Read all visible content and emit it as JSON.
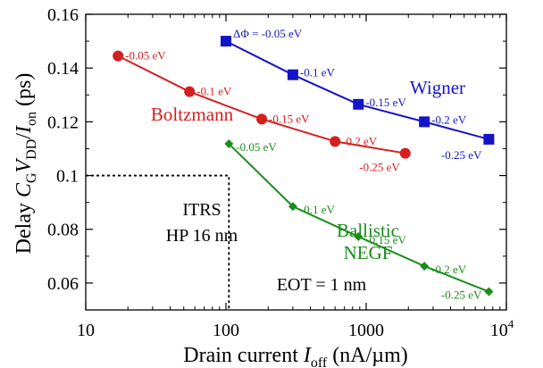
{
  "chart_data": {
    "type": "line",
    "x_scale": "log",
    "xlim": [
      10,
      10000
    ],
    "ylim": [
      0.05,
      0.16
    ],
    "x_ticks": [
      {
        "value": 10,
        "label": "10"
      },
      {
        "value": 100,
        "label": "100"
      },
      {
        "value": 1000,
        "label": "1000"
      },
      {
        "value": 10000,
        "label": "10",
        "sup": "4"
      }
    ],
    "y_ticks": [
      {
        "value": 0.06,
        "label": "0.06"
      },
      {
        "value": 0.08,
        "label": "0.08"
      },
      {
        "value": 0.1,
        "label": "0.1"
      },
      {
        "value": 0.12,
        "label": "0.12"
      },
      {
        "value": 0.14,
        "label": "0.14"
      },
      {
        "value": 0.16,
        "label": "0.16"
      }
    ],
    "xlabel": {
      "pre": "Drain current ",
      "var": "I",
      "sub": "off",
      "post": " (nA/µm)"
    },
    "ylabel": {
      "pre": "Delay ",
      "v1": "C",
      "s1": "G",
      "v2": "V",
      "s2": "DD",
      "mid": "/",
      "v3": "I",
      "s3": "on",
      "post": " (ps)"
    },
    "grid": false,
    "legend": "none",
    "series": [
      {
        "name": "Wigner",
        "color": "#1414c8",
        "marker": "square",
        "x": [
          100,
          300,
          880,
          2600,
          7500
        ],
        "y": [
          0.15,
          0.1375,
          0.1265,
          0.12,
          0.1135
        ],
        "point_labels": [
          "ΔΦ = -0.05 eV",
          "-0.1 eV",
          "-0.15 eV",
          "-0.2 eV",
          "-0.25 eV"
        ]
      },
      {
        "name": "Boltzmann",
        "color": "#d42020",
        "marker": "circle",
        "x": [
          17,
          55,
          180,
          600,
          1900
        ],
        "y": [
          0.1445,
          0.1312,
          0.121,
          0.1127,
          0.1083
        ],
        "point_labels": [
          "-0.05 eV",
          "-0.1 eV",
          "-0.15 eV",
          "-0.2 eV",
          "-0.25 eV"
        ]
      },
      {
        "name": "Ballistic NEGF",
        "color": "#1a8c1a",
        "marker": "diamond",
        "x": [
          105,
          300,
          880,
          2600,
          7500
        ],
        "y": [
          0.1118,
          0.0885,
          0.0773,
          0.0663,
          0.0568
        ],
        "point_labels": [
          "-0.05 eV",
          "-0.1 eV",
          "-0.15 eV",
          "-0.2 eV",
          "-0.25 eV"
        ]
      }
    ],
    "annotations": [
      {
        "text": "ITRS",
        "color": "#000000"
      },
      {
        "text": "HP 16 nm",
        "color": "#000000"
      },
      {
        "text": "EOT = 1 nm",
        "color": "#000000"
      }
    ],
    "itrs_limit": {
      "x": 105,
      "y": 0.1
    }
  }
}
